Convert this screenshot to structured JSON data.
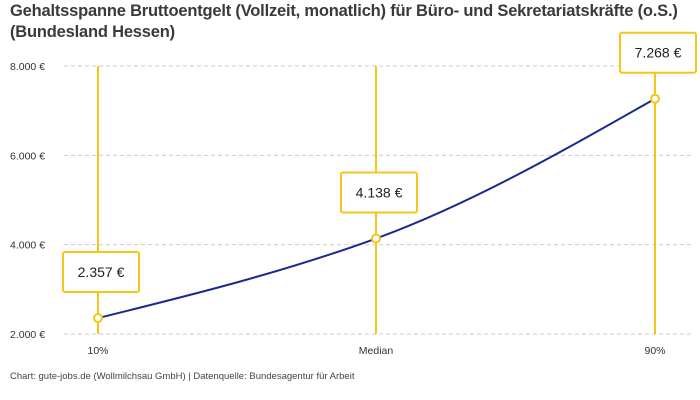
{
  "title": "Gehaltsspanne Bruttoentgelt (Vollzeit, monatlich) für Büro- und Sekretariatskräfte (o.S.) (Bundesland Hessen)",
  "footer": "Chart: gute-jobs.de (Wollmilchsau GmbH) | Datenquelle: Bundesagentur für Arbeit",
  "chart_data": {
    "type": "line",
    "categories": [
      "10%",
      "Median",
      "90%"
    ],
    "values": [
      2357,
      4138,
      7268
    ],
    "data_labels": [
      "2.357 €",
      "4.138 €",
      "7.268 €"
    ],
    "y_ticks": [
      2000,
      4000,
      6000,
      8000
    ],
    "y_tick_labels": [
      "2.000 €",
      "4.000 €",
      "6.000 €",
      "8.000 €"
    ],
    "ylim": [
      2000,
      8000
    ],
    "grid": "horizontal dashed",
    "colors": {
      "line": "#1a2a8c",
      "marker": "#f5c518",
      "grid": "#cccccc"
    }
  }
}
